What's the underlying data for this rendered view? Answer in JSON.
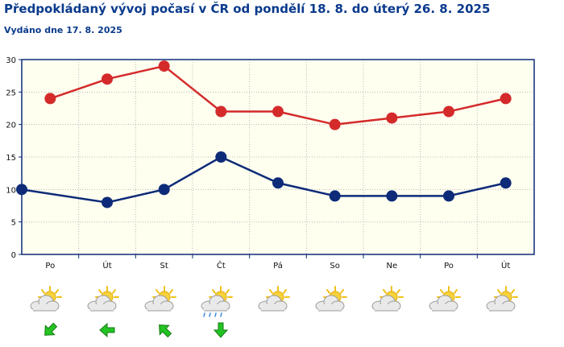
{
  "header": {
    "title": "Předpokládaný vývoj počasí v ČR od pondělí 18. 8. do úterý 26. 8. 2025",
    "issued": "Vydáno dne 17. 8. 2025"
  },
  "colors": {
    "plot_bg": "#fffff0",
    "max_series": "#d42a2a",
    "min_series": "#0d2b78",
    "axis": "#0d2b78",
    "grid": "#b8b8b8",
    "arrow": "#22c422"
  },
  "chart_data": {
    "type": "line",
    "categories": [
      "Po",
      "Út",
      "St",
      "Čt",
      "Pá",
      "So",
      "Ne",
      "Po",
      "Út"
    ],
    "series": [
      {
        "key": "max",
        "values": [
          24,
          27,
          29,
          22,
          22,
          20,
          21,
          22,
          24
        ],
        "color": "#d42a2a"
      },
      {
        "key": "min",
        "values": [
          10,
          8,
          10,
          15,
          11,
          9,
          9,
          9,
          11
        ],
        "color": "#0d2b78"
      }
    ],
    "ylim": [
      0,
      30
    ],
    "yticks": [
      "0",
      "5",
      "10",
      "15",
      "20",
      "25",
      "30"
    ],
    "grid": true,
    "min_series_starts_at_axis": true
  },
  "weather": {
    "days": [
      {
        "icon": "partly-cloudy-sun-icon",
        "wind": "wind-arrow-southwest-icon"
      },
      {
        "icon": "partly-cloudy-sun-icon",
        "wind": "wind-arrow-west-icon"
      },
      {
        "icon": "partly-cloudy-sun-icon",
        "wind": "wind-arrow-northwest-icon"
      },
      {
        "icon": "cloudy-rain-sun-icon",
        "wind": "wind-arrow-south-icon"
      },
      {
        "icon": "partly-cloudy-sun-icon",
        "wind": ""
      },
      {
        "icon": "partly-cloudy-sun-icon",
        "wind": ""
      },
      {
        "icon": "partly-cloudy-sun-icon",
        "wind": ""
      },
      {
        "icon": "partly-cloudy-sun-icon",
        "wind": ""
      },
      {
        "icon": "partly-cloudy-sun-icon",
        "wind": ""
      }
    ]
  }
}
